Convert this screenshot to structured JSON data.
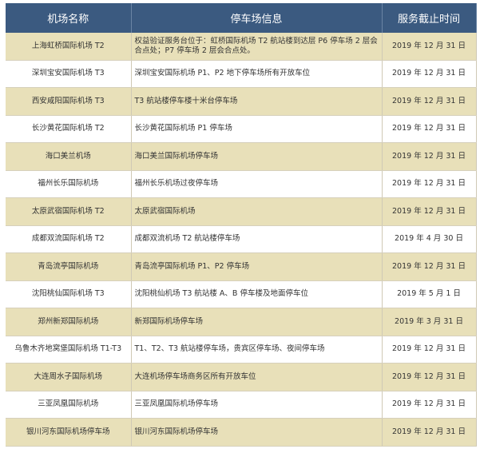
{
  "headers": [
    "机场名称",
    "停车场信息",
    "服务截止时间"
  ],
  "rows": [
    [
      "上海虹桥国际机场 T2",
      "权益验证服务台位于：虹桥国际机场 T2 航站楼到达层 P6 停车场 2 层会合点处；P7 停车场 2 层会合点处。",
      "2019 年 12 月 31 日"
    ],
    [
      "深圳宝安国际机场 T3",
      "深圳宝安国际机场 P1、P2 地下停车场所有开放车位",
      "2019 年 12 月 31 日"
    ],
    [
      "西安咸阳国际机场 T3",
      "T3 航站楼停车楼十米台停车场",
      "2019 年 12 月 31 日"
    ],
    [
      "长沙黄花国际机场 T2",
      "长沙黄花国际机场 P1 停车场",
      "2019 年 12 月 31 日"
    ],
    [
      "海口美兰机场",
      "海口美兰国际机场停车场",
      "2019 年 12 月 31 日"
    ],
    [
      "福州长乐国际机场",
      "福州长乐机场过夜停车场",
      "2019 年 12 月 31 日"
    ],
    [
      "太原武宿国际机场 T2",
      "太原武宿国际机场",
      "2019 年 12 月 31 日"
    ],
    [
      "成都双流国际机场 T2",
      "成都双流机场 T2 航站楼停车场",
      "2019 年 4 月 30 日"
    ],
    [
      "青岛流亭国际机场",
      "青岛流亭国际机场 P1、P2 停车场",
      "2019 年 12 月 31 日"
    ],
    [
      "沈阳桃仙国际机场 T3",
      "沈阳桃仙机场 T3 航站楼 A、B 停车楼及地面停车位",
      "2019 年 5 月 1 日"
    ],
    [
      "郑州新郑国际机场",
      "新郑国际机场停车场",
      "2019 年 3 月 31 日"
    ],
    [
      "乌鲁木齐地窝堡国际机场 T1-T3",
      "T1、T2、T3 航站楼停车场，贵宾区停车场、夜间停车场",
      "2019 年 12 月 31 日"
    ],
    [
      "大连周水子国际机场",
      "大连机场停车场商务区所有开放车位",
      "2019 年 12 月 31 日"
    ],
    [
      "三亚凤凰国际机场",
      "三亚凤凰国际机场停车场",
      "2019 年 12 月 31 日"
    ],
    [
      "银川河东国际机场停车场",
      "银川河东国际机场停车场",
      "2019 年 12 月 31 日"
    ]
  ],
  "colors": {
    "header": "#3b5a80",
    "stripe": "#e8e0b9"
  }
}
